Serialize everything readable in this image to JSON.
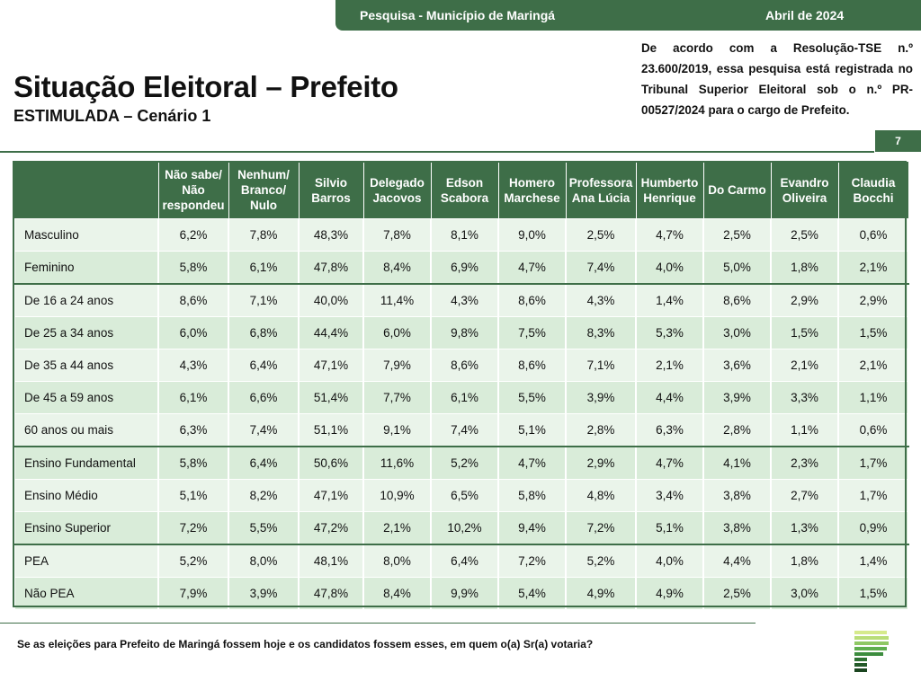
{
  "header": {
    "survey": "Pesquisa - Município de Maringá",
    "date": "Abril de 2024"
  },
  "title": "Situação Eleitoral – Prefeito",
  "subtitle": "ESTIMULADA – Cenário 1",
  "registration_note": "De acordo com a Resolução-TSE n.º 23.600/2019, essa pesquisa está registrada no Tribunal Superior Eleitoral sob o n.º PR-00527/2024 para o cargo de Prefeito.",
  "page_number": "7",
  "table": {
    "columns": [
      "Não sabe/ Não respondeu",
      "Nenhum/ Branco/ Nulo",
      "Silvio Barros",
      "Delegado Jacovos",
      "Edson Scabora",
      "Homero Marchese",
      "Professora Ana Lúcia",
      "Humberto Henrique",
      "Do Carmo",
      "Evandro Oliveira",
      "Claudia Bocchi"
    ],
    "rows": [
      {
        "label": "Masculino",
        "values": [
          "6,2%",
          "7,8%",
          "48,3%",
          "7,8%",
          "8,1%",
          "9,0%",
          "2,5%",
          "4,7%",
          "2,5%",
          "2,5%",
          "0,6%"
        ]
      },
      {
        "label": "Feminino",
        "values": [
          "5,8%",
          "6,1%",
          "47,8%",
          "8,4%",
          "6,9%",
          "4,7%",
          "7,4%",
          "4,0%",
          "5,0%",
          "1,8%",
          "2,1%"
        ]
      },
      {
        "label": "De 16 a 24 anos",
        "values": [
          "8,6%",
          "7,1%",
          "40,0%",
          "11,4%",
          "4,3%",
          "8,6%",
          "4,3%",
          "1,4%",
          "8,6%",
          "2,9%",
          "2,9%"
        ]
      },
      {
        "label": "De 25 a 34 anos",
        "values": [
          "6,0%",
          "6,8%",
          "44,4%",
          "6,0%",
          "9,8%",
          "7,5%",
          "8,3%",
          "5,3%",
          "3,0%",
          "1,5%",
          "1,5%"
        ]
      },
      {
        "label": "De 35 a 44 anos",
        "values": [
          "4,3%",
          "6,4%",
          "47,1%",
          "7,9%",
          "8,6%",
          "8,6%",
          "7,1%",
          "2,1%",
          "3,6%",
          "2,1%",
          "2,1%"
        ]
      },
      {
        "label": "De 45 a 59 anos",
        "values": [
          "6,1%",
          "6,6%",
          "51,4%",
          "7,7%",
          "6,1%",
          "5,5%",
          "3,9%",
          "4,4%",
          "3,9%",
          "3,3%",
          "1,1%"
        ]
      },
      {
        "label": "60 anos ou mais",
        "values": [
          "6,3%",
          "7,4%",
          "51,1%",
          "9,1%",
          "7,4%",
          "5,1%",
          "2,8%",
          "6,3%",
          "2,8%",
          "1,1%",
          "0,6%"
        ]
      },
      {
        "label": "Ensino Fundamental",
        "values": [
          "5,8%",
          "6,4%",
          "50,6%",
          "11,6%",
          "5,2%",
          "4,7%",
          "2,9%",
          "4,7%",
          "4,1%",
          "2,3%",
          "1,7%"
        ]
      },
      {
        "label": "Ensino Médio",
        "values": [
          "5,1%",
          "8,2%",
          "47,1%",
          "10,9%",
          "6,5%",
          "5,8%",
          "4,8%",
          "3,4%",
          "3,8%",
          "2,7%",
          "1,7%"
        ]
      },
      {
        "label": "Ensino Superior",
        "values": [
          "7,2%",
          "5,5%",
          "47,2%",
          "2,1%",
          "10,2%",
          "9,4%",
          "7,2%",
          "5,1%",
          "3,8%",
          "1,3%",
          "0,9%"
        ]
      },
      {
        "label": "PEA",
        "values": [
          "5,2%",
          "8,0%",
          "48,1%",
          "8,0%",
          "6,4%",
          "7,2%",
          "5,2%",
          "4,0%",
          "4,4%",
          "1,8%",
          "1,4%"
        ]
      },
      {
        "label": "Não PEA",
        "values": [
          "7,9%",
          "3,9%",
          "47,8%",
          "8,4%",
          "9,9%",
          "5,4%",
          "4,9%",
          "4,9%",
          "2,5%",
          "3,0%",
          "1,5%"
        ]
      }
    ]
  },
  "footer_question": "Se as eleições para Prefeito de Maringá fossem hoje e os candidatos fossem esses, em quem o(a) Sr(a) votaria?",
  "colors": {
    "brand_green": "#3e6e48",
    "row_light": "#eaf4ea",
    "row_dark": "#d9ecd9"
  }
}
